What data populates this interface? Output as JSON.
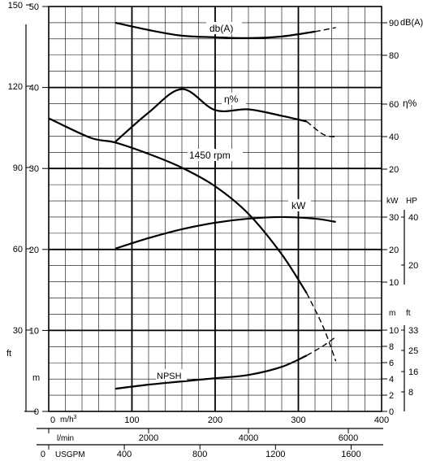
{
  "chart_data": {
    "type": "line",
    "xlim": [
      0,
      400
    ],
    "ylim": [
      0,
      50
    ],
    "grid": true,
    "scales": {
      "flow_m3h": {
        "label": "m/h³",
        "label_display": {
          "prefix": "m/h",
          "sup": "3"
        },
        "ticks": [
          "0",
          "100",
          "200",
          "300",
          "400"
        ]
      },
      "flow_lmin": {
        "label": "l/min",
        "ticks": [
          "2000",
          "4000",
          "6000"
        ]
      },
      "flow_usgpm": {
        "label": "USGPM",
        "ticks": [
          "0",
          "400",
          "800",
          "1200",
          "1600"
        ]
      },
      "head_m": {
        "ticks": [
          "0",
          "10",
          "20",
          "30",
          "40",
          "50"
        ]
      },
      "head_ft": {
        "ticks": [
          "30",
          "60",
          "90",
          "120",
          "150"
        ]
      },
      "left_units": {
        "ft": "ft",
        "m": "m"
      },
      "db": {
        "label": "dB(A)",
        "ticks": [
          "90",
          "80"
        ]
      },
      "eff": {
        "label": "η%",
        "ticks": [
          "60",
          "40",
          "20"
        ]
      },
      "power_kw": {
        "label": "kW",
        "ticks": [
          "30",
          "20",
          "10"
        ]
      },
      "power_hp": {
        "label": "HP",
        "ticks": [
          "40",
          "20"
        ]
      },
      "npsh_m": {
        "label": "m",
        "ticks": [
          "10",
          "8",
          "6",
          "4",
          "2",
          "0"
        ]
      },
      "npsh_ft": {
        "label": "ft",
        "ticks": [
          "33",
          "25",
          "16",
          "8"
        ]
      }
    },
    "series_labels": {
      "head": "1450 rpm",
      "noise": "db(A)",
      "efficiency": "η%",
      "power": "kW",
      "npsh": "NPSH"
    },
    "series": [
      {
        "name": "1450 rpm",
        "points": [
          [
            0,
            36.2
          ],
          [
            50,
            33.8
          ],
          [
            80,
            33.2
          ],
          [
            120,
            31.8
          ],
          [
            160,
            30.1
          ],
          [
            200,
            27.8
          ],
          [
            240,
            24.4
          ],
          [
            280,
            19.4
          ],
          [
            310,
            14.6
          ]
        ],
        "dashed_points": [
          [
            310,
            14.6
          ],
          [
            330,
            10.4
          ],
          [
            345,
            6.2
          ]
        ]
      },
      {
        "name": "db(A)",
        "points": [
          [
            80,
            48.0
          ],
          [
            120,
            47.1
          ],
          [
            160,
            46.4
          ],
          [
            200,
            46.2
          ],
          [
            240,
            46.1
          ],
          [
            280,
            46.3
          ],
          [
            320,
            46.9
          ]
        ],
        "dashed_points": [
          [
            320,
            46.9
          ],
          [
            345,
            47.4
          ]
        ]
      },
      {
        "name": "η%",
        "points": [
          [
            80,
            33.3
          ],
          [
            120,
            36.9
          ],
          [
            160,
            39.8
          ],
          [
            200,
            37.2
          ],
          [
            240,
            37.3
          ],
          [
            280,
            36.5
          ],
          [
            310,
            35.8
          ]
        ],
        "dashed_points": [
          [
            310,
            35.8
          ],
          [
            330,
            34.2
          ],
          [
            345,
            33.9
          ]
        ]
      },
      {
        "name": "kW",
        "points": [
          [
            80,
            20.1
          ],
          [
            120,
            21.4
          ],
          [
            160,
            22.5
          ],
          [
            200,
            23.3
          ],
          [
            240,
            23.8
          ],
          [
            280,
            24.0
          ],
          [
            320,
            23.8
          ],
          [
            345,
            23.4
          ]
        ]
      },
      {
        "name": "NPSH",
        "points": [
          [
            80,
            2.8
          ],
          [
            120,
            3.3
          ],
          [
            160,
            3.7
          ],
          [
            200,
            4.1
          ],
          [
            240,
            4.5
          ],
          [
            280,
            5.5
          ],
          [
            310,
            6.9
          ]
        ],
        "dashed_points": [
          [
            310,
            6.9
          ],
          [
            330,
            8.1
          ],
          [
            345,
            9.2
          ]
        ]
      }
    ]
  }
}
